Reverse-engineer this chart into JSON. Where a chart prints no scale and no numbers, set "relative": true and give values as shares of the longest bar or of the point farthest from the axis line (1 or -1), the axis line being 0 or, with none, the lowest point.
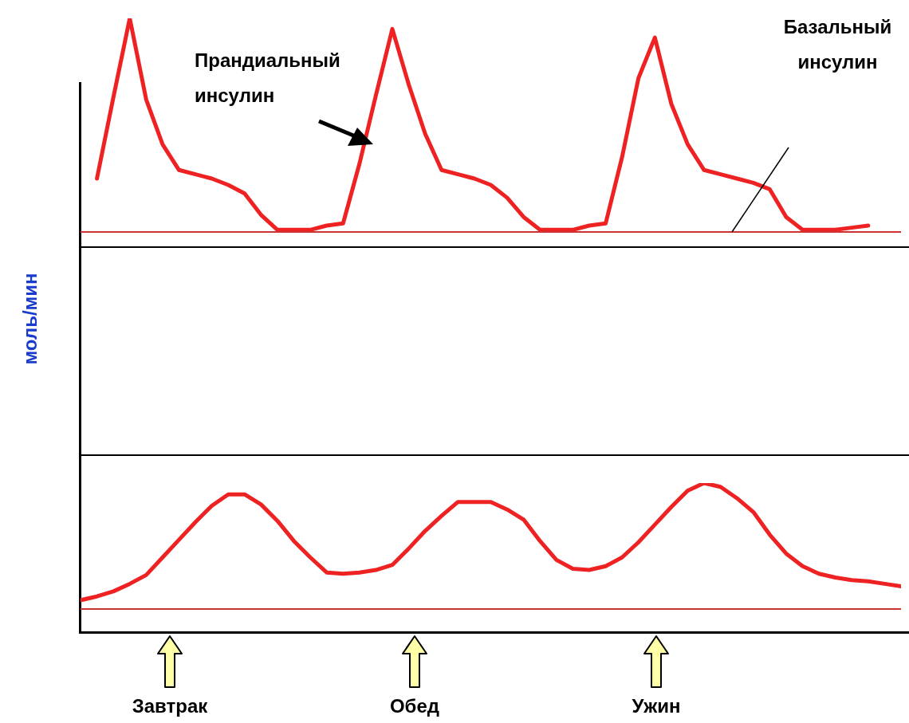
{
  "chart_data": [
    {
      "type": "line",
      "relative": true,
      "marker": "none",
      "ylabel": "моль/мин",
      "annotations": [
        "Прандиальный инсулин",
        "Базальный инсулин"
      ],
      "categories": [
        null,
        null,
        null,
        null,
        null,
        null,
        null,
        null,
        null,
        null,
        null,
        null,
        null,
        null,
        null,
        null,
        null,
        null,
        null,
        null,
        null,
        null,
        null,
        null,
        null,
        null,
        null,
        null,
        null,
        null,
        null,
        null,
        null,
        null,
        null,
        null,
        null,
        null,
        null,
        null,
        null,
        null,
        null,
        null,
        null,
        null,
        null,
        null,
        null,
        null,
        null
      ],
      "series": [
        {
          "color": "#ee2222",
          "values": [
            null,
            0.25,
            0.63,
            1,
            0.62,
            0.41,
            0.29,
            0.27,
            0.25,
            0.22,
            0.18,
            0.08,
            0.01,
            0.01,
            0.01,
            0.03,
            0.04,
            0.32,
            0.64,
            0.95,
            0.69,
            0.46,
            0.29,
            0.27,
            0.25,
            0.22,
            0.16,
            0.07,
            0.01,
            0.01,
            0.01,
            0.03,
            0.04,
            0.35,
            0.72,
            0.91,
            0.6,
            0.41,
            0.29,
            0.27,
            0.25,
            0.23,
            0.2,
            0.07,
            0.01,
            0.01,
            0.01,
            0.02,
            0.03,
            null,
            null
          ]
        }
      ]
    },
    {
      "type": "line",
      "relative": true,
      "marker": "none",
      "annotations": [
        "Завтрак",
        "Обед",
        "Ужин"
      ],
      "categories": [
        null,
        null,
        null,
        null,
        null,
        null,
        null,
        null,
        null,
        null,
        null,
        null,
        null,
        null,
        null,
        null,
        null,
        null,
        null,
        null,
        null,
        null,
        null,
        null,
        null,
        null,
        null,
        null,
        null,
        null,
        null,
        null,
        null,
        null,
        null,
        null,
        null,
        null,
        null,
        null,
        null,
        null,
        null,
        null,
        null,
        null,
        null,
        null,
        null,
        null,
        null
      ],
      "series": [
        {
          "color": "#ee2222",
          "values": [
            0.07,
            0.1,
            0.14,
            0.2,
            0.27,
            0.41,
            0.55,
            0.69,
            0.82,
            0.91,
            0.91,
            0.83,
            0.7,
            0.54,
            0.41,
            0.29,
            0.28,
            0.29,
            0.31,
            0.35,
            0.48,
            0.62,
            0.74,
            0.85,
            0.85,
            0.85,
            0.79,
            0.71,
            0.54,
            0.39,
            0.32,
            0.31,
            0.34,
            0.41,
            0.53,
            0.67,
            0.81,
            0.94,
            1,
            0.97,
            0.88,
            0.77,
            0.59,
            0.44,
            0.34,
            0.28,
            0.25,
            0.23,
            0.22,
            0.2,
            0.18
          ]
        }
      ]
    }
  ]
}
